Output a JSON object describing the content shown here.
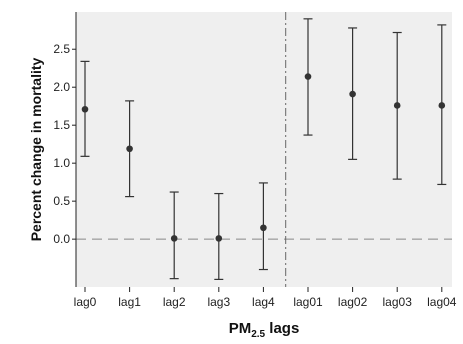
{
  "chart_data": {
    "type": "scatter",
    "title": "",
    "ylabel": "Percent change in mortality",
    "xlabel_main": "PM",
    "xlabel_sub": "2.5",
    "xlabel_rest": " lags",
    "categories": [
      "lag0",
      "lag1",
      "lag2",
      "lag3",
      "lag4",
      "lag01",
      "lag02",
      "lag03",
      "lag04"
    ],
    "series": [
      {
        "estimate": [
          1.71,
          1.19,
          0.01,
          0.01,
          0.15,
          2.14,
          1.91,
          1.76,
          1.76
        ],
        "lower": [
          1.09,
          0.56,
          -0.52,
          -0.53,
          -0.4,
          1.37,
          1.05,
          0.79,
          0.72
        ],
        "upper": [
          2.34,
          1.82,
          0.62,
          0.6,
          0.74,
          2.9,
          2.78,
          2.72,
          2.82
        ]
      }
    ],
    "yticks": [
      0.0,
      0.5,
      1.0,
      1.5,
      2.0,
      2.5
    ],
    "ytick_labels": [
      "0.0",
      "0.5",
      "1.0",
      "1.5",
      "2.0",
      "2.5"
    ],
    "ylim": [
      -0.63,
      2.99
    ],
    "reference_line_y": 0.0,
    "divider_between": [
      "lag4",
      "lag01"
    ],
    "grid": false,
    "colors": {
      "background": "#efefef",
      "marker": "#333333",
      "errorbar": "#333333",
      "reference_line": "#888888",
      "divider_line": "#666666"
    }
  }
}
